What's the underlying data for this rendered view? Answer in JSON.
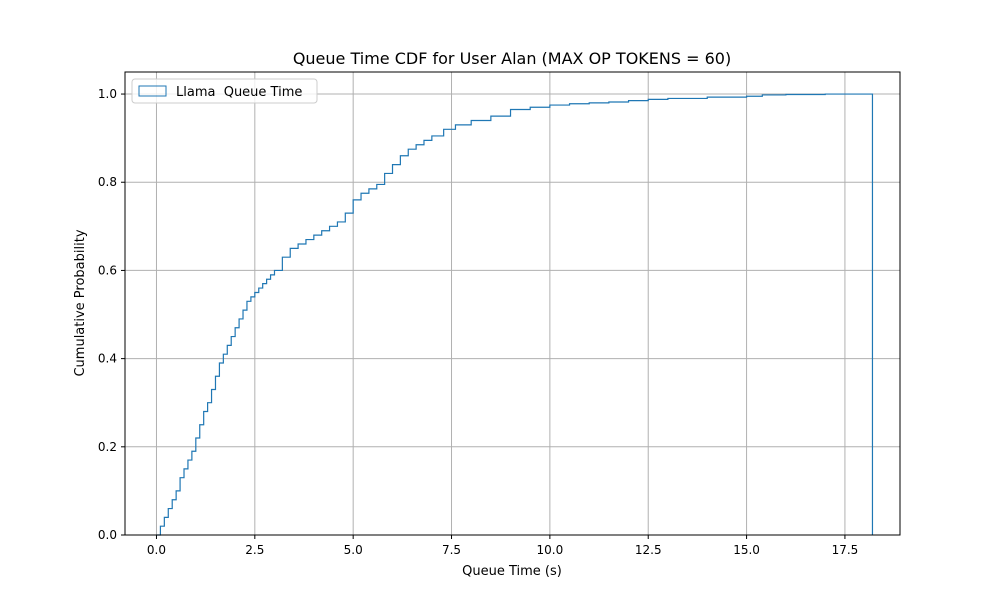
{
  "chart_data": {
    "type": "line",
    "title": "Queue Time CDF for User Alan (MAX OP TOKENS = 60)",
    "xlabel": "Queue Time (s)",
    "ylabel": "Cumulative Probability",
    "xlim": [
      -0.8,
      18.9
    ],
    "ylim": [
      0.0,
      1.05
    ],
    "x_ticks": [
      0.0,
      2.5,
      5.0,
      7.5,
      10.0,
      12.5,
      15.0,
      17.5
    ],
    "x_tick_labels": [
      "0.0",
      "2.5",
      "5.0",
      "7.5",
      "10.0",
      "12.5",
      "15.0",
      "17.5"
    ],
    "y_ticks": [
      0.0,
      0.2,
      0.4,
      0.6,
      0.8,
      1.0
    ],
    "y_tick_labels": [
      "0.0",
      "0.2",
      "0.4",
      "0.6",
      "0.8",
      "1.0"
    ],
    "grid": true,
    "legend_position": "upper-left",
    "series": [
      {
        "name": "Llama  Queue Time",
        "color": "#1f77b4",
        "style": "step-histogram-cumulative",
        "x": [
          0.0,
          0.1,
          0.2,
          0.3,
          0.4,
          0.5,
          0.6,
          0.7,
          0.8,
          0.9,
          1.0,
          1.1,
          1.2,
          1.3,
          1.4,
          1.5,
          1.6,
          1.7,
          1.8,
          1.9,
          2.0,
          2.1,
          2.2,
          2.3,
          2.4,
          2.5,
          2.6,
          2.7,
          2.8,
          2.9,
          3.0,
          3.2,
          3.4,
          3.6,
          3.8,
          4.0,
          4.2,
          4.4,
          4.6,
          4.8,
          5.0,
          5.2,
          5.4,
          5.6,
          5.8,
          6.0,
          6.2,
          6.4,
          6.6,
          6.8,
          7.0,
          7.3,
          7.6,
          8.0,
          8.5,
          9.0,
          9.5,
          10.0,
          10.5,
          11.0,
          11.5,
          12.0,
          12.5,
          13.0,
          14.0,
          15.0,
          15.4,
          16.0,
          17.0,
          18.2
        ],
        "y": [
          0.0,
          0.02,
          0.04,
          0.06,
          0.08,
          0.1,
          0.13,
          0.15,
          0.17,
          0.19,
          0.22,
          0.25,
          0.28,
          0.3,
          0.33,
          0.36,
          0.39,
          0.41,
          0.43,
          0.45,
          0.47,
          0.49,
          0.51,
          0.53,
          0.54,
          0.55,
          0.56,
          0.57,
          0.58,
          0.59,
          0.6,
          0.63,
          0.65,
          0.66,
          0.67,
          0.68,
          0.69,
          0.7,
          0.71,
          0.73,
          0.76,
          0.775,
          0.785,
          0.795,
          0.82,
          0.84,
          0.86,
          0.875,
          0.885,
          0.895,
          0.905,
          0.92,
          0.93,
          0.94,
          0.95,
          0.965,
          0.97,
          0.975,
          0.978,
          0.98,
          0.982,
          0.985,
          0.988,
          0.99,
          0.993,
          0.995,
          0.998,
          0.999,
          1.0,
          1.0
        ]
      }
    ]
  }
}
